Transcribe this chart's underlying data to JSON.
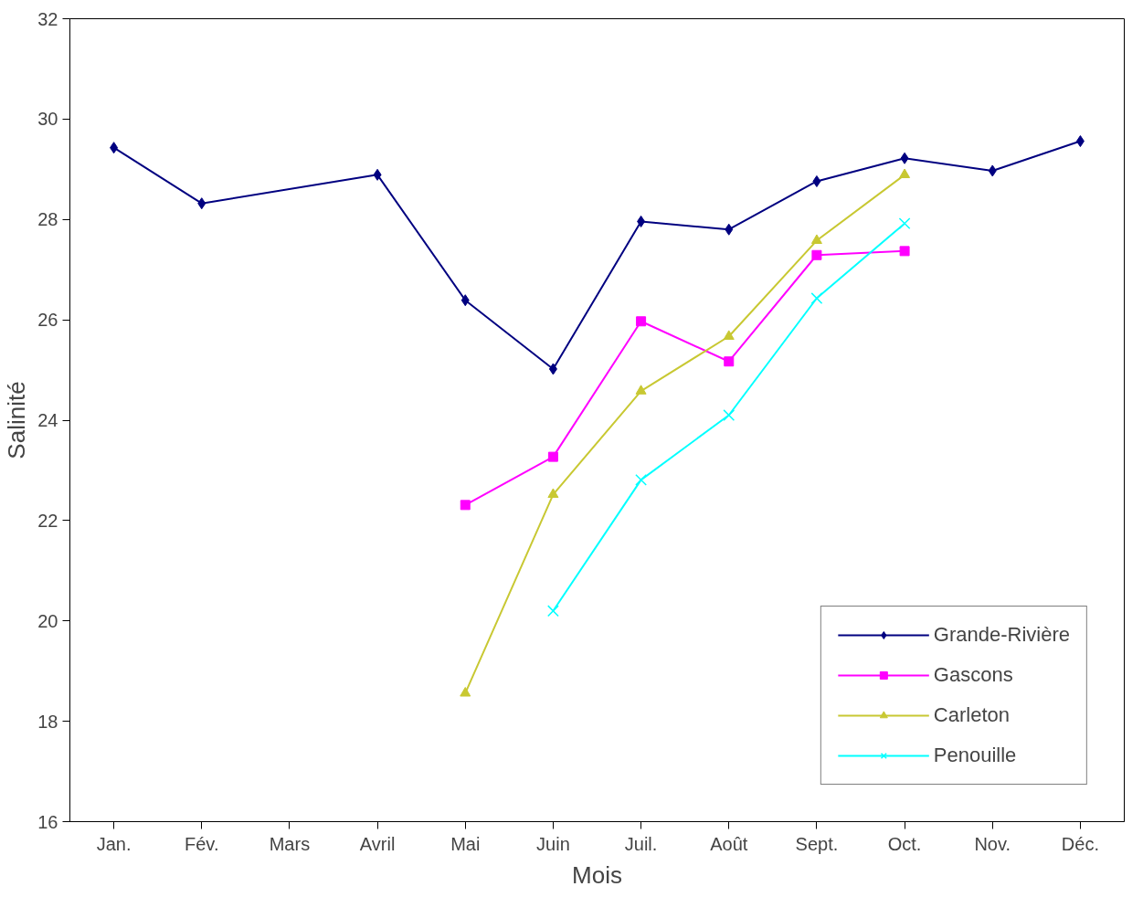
{
  "chart_data": {
    "type": "line",
    "xlabel": "Mois",
    "ylabel": "Salinité",
    "categories": [
      "Jan.",
      "Fév.",
      "Mars",
      "Avril",
      "Mai",
      "Juin",
      "Juil.",
      "Août",
      "Sept.",
      "Oct.",
      "Nov.",
      "Déc."
    ],
    "ylim": [
      16,
      32
    ],
    "yticks": [
      16,
      18,
      20,
      22,
      24,
      26,
      28,
      30,
      32
    ],
    "grid": false,
    "legend": "bottom right",
    "series": [
      {
        "name": "Grande-Rivière",
        "color": "#000080",
        "marker": "diamond",
        "values": [
          29.43,
          28.32,
          null,
          28.89,
          26.39,
          25.02,
          27.96,
          27.8,
          28.76,
          29.22,
          28.97,
          29.56
        ]
      },
      {
        "name": "Gascons",
        "color": "#ff00ff",
        "marker": "square",
        "values": [
          null,
          null,
          null,
          null,
          22.31,
          23.27,
          25.97,
          25.17,
          27.29,
          27.37,
          null,
          null
        ]
      },
      {
        "name": "Carleton",
        "color": "#c8c832",
        "marker": "triangle",
        "values": [
          null,
          null,
          null,
          null,
          18.56,
          22.52,
          24.58,
          25.67,
          27.58,
          28.89,
          null,
          null
        ]
      },
      {
        "name": "Penouille",
        "color": "#00ffff",
        "marker": "cross",
        "values": [
          null,
          null,
          null,
          null,
          null,
          20.2,
          22.81,
          24.1,
          26.43,
          27.92,
          null,
          null
        ]
      }
    ]
  }
}
